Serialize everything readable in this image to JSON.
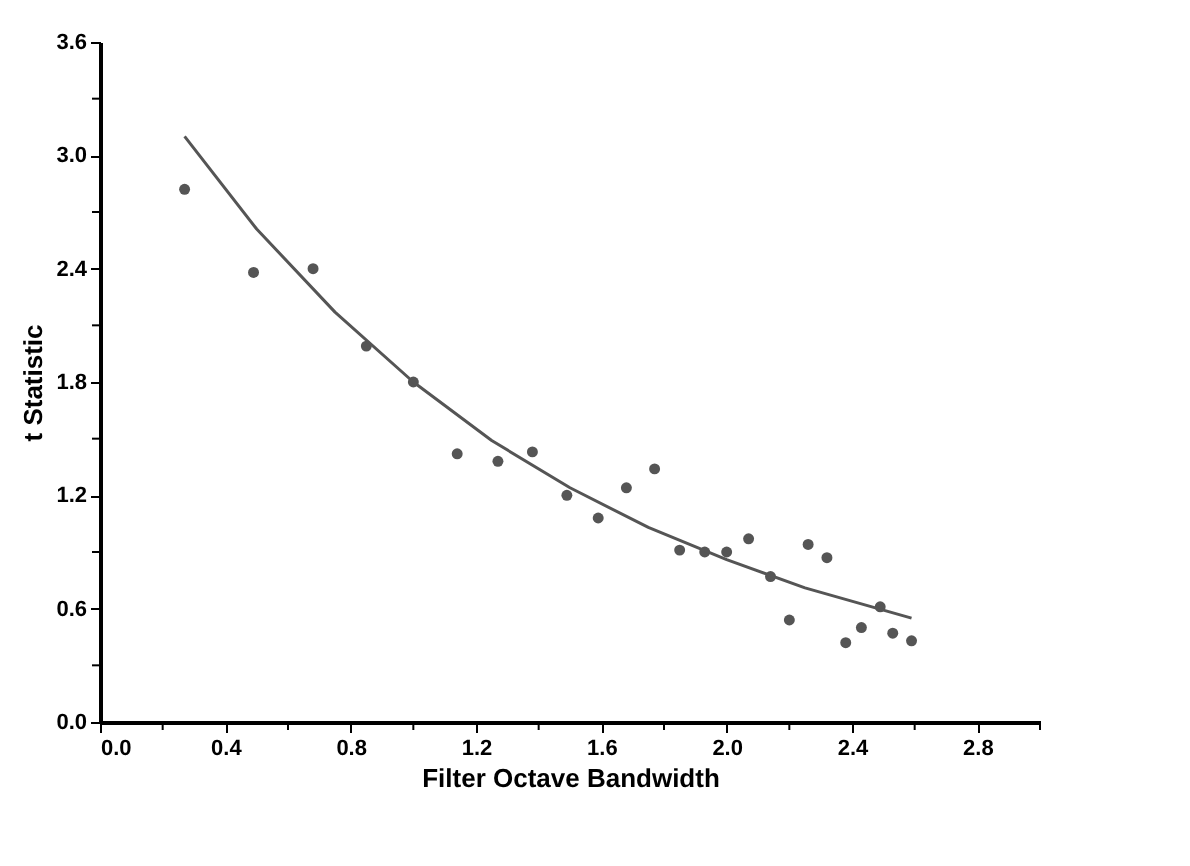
{
  "chart_data": {
    "type": "scatter",
    "xlabel": "Filter Octave Bandwidth",
    "ylabel": "t Statistic",
    "xlim": [
      0,
      3.0
    ],
    "ylim": [
      0,
      3.6
    ],
    "xticks": [
      {
        "value": 0,
        "label": "0.0"
      },
      {
        "value": 0.2,
        "label": null
      },
      {
        "value": 0.4,
        "label": "0.4"
      },
      {
        "value": 0.6,
        "label": null
      },
      {
        "value": 0.8,
        "label": "0.8"
      },
      {
        "value": 1.0,
        "label": null
      },
      {
        "value": 1.2,
        "label": "1.2"
      },
      {
        "value": 1.4,
        "label": null
      },
      {
        "value": 1.6,
        "label": "1.6"
      },
      {
        "value": 1.8,
        "label": null
      },
      {
        "value": 2.0,
        "label": "2.0"
      },
      {
        "value": 2.2,
        "label": null
      },
      {
        "value": 2.4,
        "label": "2.4"
      },
      {
        "value": 2.6,
        "label": null
      },
      {
        "value": 2.8,
        "label": "2.8"
      },
      {
        "value": 3.0,
        "label": null
      }
    ],
    "yticks": [
      {
        "value": 0,
        "label": "0.0"
      },
      {
        "value": 0.3,
        "label": null
      },
      {
        "value": 0.6,
        "label": "0.6"
      },
      {
        "value": 0.9,
        "label": null
      },
      {
        "value": 1.2,
        "label": "1.2"
      },
      {
        "value": 1.5,
        "label": null
      },
      {
        "value": 1.8,
        "label": "1.8"
      },
      {
        "value": 2.1,
        "label": null
      },
      {
        "value": 2.4,
        "label": "2.4"
      },
      {
        "value": 2.7,
        "label": null
      },
      {
        "value": 3.0,
        "label": "3.0"
      },
      {
        "value": 3.3,
        "label": null
      },
      {
        "value": 3.6,
        "label": "3.6"
      }
    ],
    "grid": false,
    "marker": "circle",
    "series": [
      {
        "type": "scatter",
        "color": "#555555",
        "x": [
          0.27,
          0.49,
          0.68,
          0.85,
          1.0,
          1.14,
          1.27,
          1.38,
          1.49,
          1.59,
          1.68,
          1.77,
          1.85,
          1.93,
          2.0,
          2.07,
          2.14,
          2.2,
          2.26,
          2.32,
          2.38,
          2.43,
          2.49,
          2.53,
          2.59
        ],
        "values": [
          2.82,
          2.38,
          2.4,
          1.99,
          1.8,
          1.42,
          1.38,
          1.43,
          1.2,
          1.08,
          1.24,
          1.34,
          0.91,
          0.9,
          0.9,
          0.97,
          0.77,
          0.54,
          0.94,
          0.87,
          0.42,
          0.5,
          0.61,
          0.47,
          0.43
        ]
      },
      {
        "type": "line",
        "color": "#555555",
        "marker": "none",
        "line_style": "solid",
        "x": [
          0.27,
          0.5,
          0.75,
          1.0,
          1.25,
          1.5,
          1.75,
          2.0,
          2.25,
          2.59
        ],
        "values": [
          3.1,
          2.61,
          2.17,
          1.8,
          1.49,
          1.24,
          1.03,
          0.86,
          0.71,
          0.55
        ]
      }
    ]
  }
}
